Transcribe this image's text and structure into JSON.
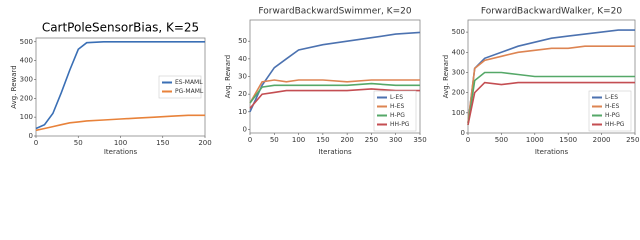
{
  "chart_data": [
    {
      "type": "line",
      "title": "CartPoleSensorBias, K=25",
      "x_label": "Iterations",
      "y_label": "Avg. Reward",
      "x": [
        0,
        10,
        20,
        30,
        40,
        50,
        60,
        80,
        100,
        120,
        140,
        160,
        180,
        200
      ],
      "series": [
        {
          "name": "ES-MAML",
          "color": "#3a6fb5",
          "values": [
            40,
            60,
            120,
            230,
            350,
            460,
            495,
            500,
            500,
            500,
            500,
            500,
            500,
            500
          ]
        },
        {
          "name": "PG-MAML",
          "color": "#e8823a",
          "values": [
            30,
            40,
            50,
            60,
            70,
            75,
            80,
            85,
            90,
            95,
            100,
            105,
            110,
            110
          ]
        }
      ],
      "xlim": [
        0,
        200
      ],
      "ylim": [
        0,
        520
      ],
      "xticks": [
        0,
        50,
        100,
        150,
        200
      ],
      "yticks": [
        0,
        100,
        200,
        300,
        400,
        500
      ],
      "legend": "center right"
    },
    {
      "type": "line",
      "title": "ForwardBackwardSwimmer, K=20",
      "x_label": "Iterations",
      "y_label": "Avg. Reward",
      "x": [
        0,
        25,
        50,
        75,
        100,
        150,
        200,
        250,
        300,
        350
      ],
      "series": [
        {
          "name": "L-ES",
          "color": "#4c72b0",
          "values": [
            10,
            25,
            35,
            40,
            45,
            48,
            50,
            52,
            54,
            55
          ]
        },
        {
          "name": "H-ES",
          "color": "#dd8452",
          "values": [
            15,
            27,
            28,
            27,
            28,
            28,
            27,
            28,
            28,
            28
          ]
        },
        {
          "name": "H-PG",
          "color": "#55a868",
          "values": [
            15,
            24,
            25,
            25,
            25,
            25,
            25,
            26,
            25,
            25
          ]
        },
        {
          "name": "HH-PG",
          "color": "#c44e52",
          "values": [
            12,
            20,
            21,
            22,
            22,
            22,
            22,
            23,
            22,
            22
          ]
        }
      ],
      "xlim": [
        0,
        350
      ],
      "ylim": [
        -2,
        62
      ],
      "xticks": [
        0,
        50,
        100,
        150,
        200,
        250,
        300,
        350
      ],
      "yticks": [
        0,
        10,
        20,
        30,
        40,
        50
      ],
      "legend": "lower right"
    },
    {
      "type": "line",
      "title": "ForwardBackwardWalker, K=20",
      "x_label": "Iterations",
      "y_label": "Avg. Reward",
      "x": [
        0,
        100,
        250,
        500,
        750,
        1000,
        1250,
        1500,
        1750,
        2000,
        2250,
        2500
      ],
      "series": [
        {
          "name": "L-ES",
          "color": "#4c72b0",
          "values": [
            50,
            320,
            370,
            400,
            430,
            450,
            470,
            480,
            490,
            500,
            510,
            510
          ]
        },
        {
          "name": "H-ES",
          "color": "#dd8452",
          "values": [
            50,
            320,
            360,
            380,
            400,
            410,
            420,
            420,
            430,
            430,
            430,
            430
          ]
        },
        {
          "name": "H-PG",
          "color": "#55a868",
          "values": [
            40,
            260,
            300,
            300,
            290,
            280,
            280,
            280,
            280,
            280,
            280,
            280
          ]
        },
        {
          "name": "HH-PG",
          "color": "#c44e52",
          "values": [
            40,
            200,
            250,
            240,
            250,
            250,
            250,
            250,
            250,
            250,
            250,
            250
          ]
        }
      ],
      "xlim": [
        0,
        2500
      ],
      "ylim": [
        0,
        560
      ],
      "xticks": [
        0,
        500,
        1000,
        1500,
        2000,
        2500
      ],
      "yticks": [
        0,
        100,
        200,
        300,
        400,
        500
      ],
      "legend": "lower right"
    }
  ]
}
